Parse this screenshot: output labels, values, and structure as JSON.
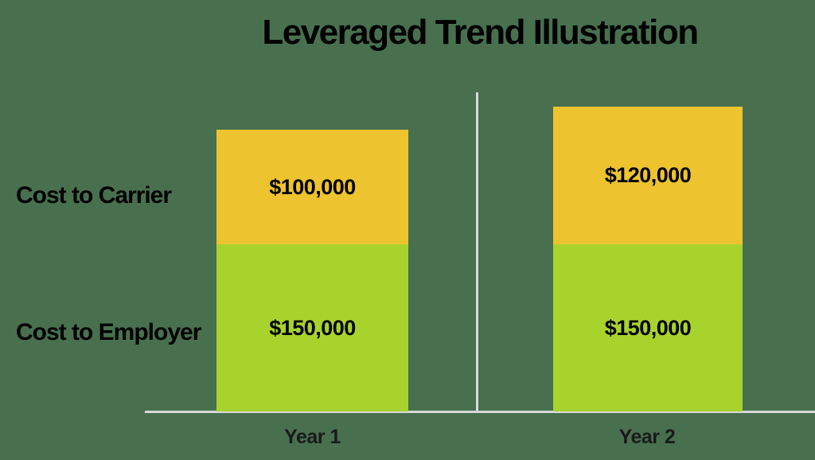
{
  "page": {
    "background_color": "#48704F"
  },
  "chart_data": {
    "type": "bar",
    "stacked": true,
    "orientation": "vertical",
    "title": "Leveraged Trend Illustration",
    "categories": [
      "Year 1",
      "Year 2"
    ],
    "series": [
      {
        "name": "Cost to Employer",
        "color": "#A8D32D",
        "values": [
          150000,
          150000
        ],
        "data_labels": [
          "$150,000",
          "$150,000"
        ]
      },
      {
        "name": "Cost to Carrier",
        "color": "#EDC32F",
        "values": [
          100000,
          120000
        ],
        "data_labels": [
          "$100,000",
          "$120,000"
        ]
      }
    ],
    "row_labels": [
      "Cost to Carrier",
      "Cost to Employer"
    ],
    "axis_color": "#D9D9D9",
    "value_text_color": "#000000",
    "category_label_color": "#1A1A1A",
    "legend": "none",
    "gridlines": false,
    "y_axis_ticks": "none"
  }
}
